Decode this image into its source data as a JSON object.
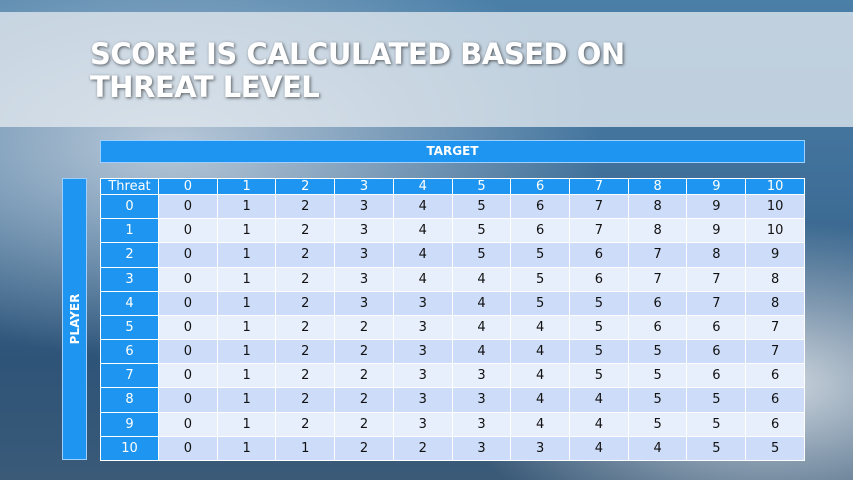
{
  "title": "SCORE IS CALCULATED BASED ON THREAT LEVEL",
  "target_label": "TARGET",
  "player_label": "PLAYER",
  "colors": {
    "header": "#1e95f0",
    "row_odd": "#cddcf8",
    "row_even": "#e8effc"
  },
  "table": {
    "corner": "Threat",
    "columns": [
      "0",
      "1",
      "2",
      "3",
      "4",
      "5",
      "6",
      "7",
      "8",
      "9",
      "10"
    ],
    "rows": [
      {
        "label": "0",
        "values": [
          0,
          1,
          2,
          3,
          4,
          5,
          6,
          7,
          8,
          9,
          10
        ]
      },
      {
        "label": "1",
        "values": [
          0,
          1,
          2,
          3,
          4,
          5,
          6,
          7,
          8,
          9,
          10
        ]
      },
      {
        "label": "2",
        "values": [
          0,
          1,
          2,
          3,
          4,
          5,
          5,
          6,
          7,
          8,
          9
        ]
      },
      {
        "label": "3",
        "values": [
          0,
          1,
          2,
          3,
          4,
          4,
          5,
          6,
          7,
          7,
          8
        ]
      },
      {
        "label": "4",
        "values": [
          0,
          1,
          2,
          3,
          3,
          4,
          5,
          5,
          6,
          7,
          8
        ]
      },
      {
        "label": "5",
        "values": [
          0,
          1,
          2,
          2,
          3,
          4,
          4,
          5,
          6,
          6,
          7
        ]
      },
      {
        "label": "6",
        "values": [
          0,
          1,
          2,
          2,
          3,
          4,
          4,
          5,
          5,
          6,
          7
        ]
      },
      {
        "label": "7",
        "values": [
          0,
          1,
          2,
          2,
          3,
          3,
          4,
          5,
          5,
          6,
          6
        ]
      },
      {
        "label": "8",
        "values": [
          0,
          1,
          2,
          2,
          3,
          3,
          4,
          4,
          5,
          5,
          6
        ]
      },
      {
        "label": "9",
        "values": [
          0,
          1,
          2,
          2,
          3,
          3,
          4,
          4,
          5,
          5,
          6
        ]
      },
      {
        "label": "10",
        "values": [
          0,
          1,
          1,
          2,
          2,
          3,
          3,
          4,
          4,
          5,
          5
        ]
      }
    ]
  }
}
